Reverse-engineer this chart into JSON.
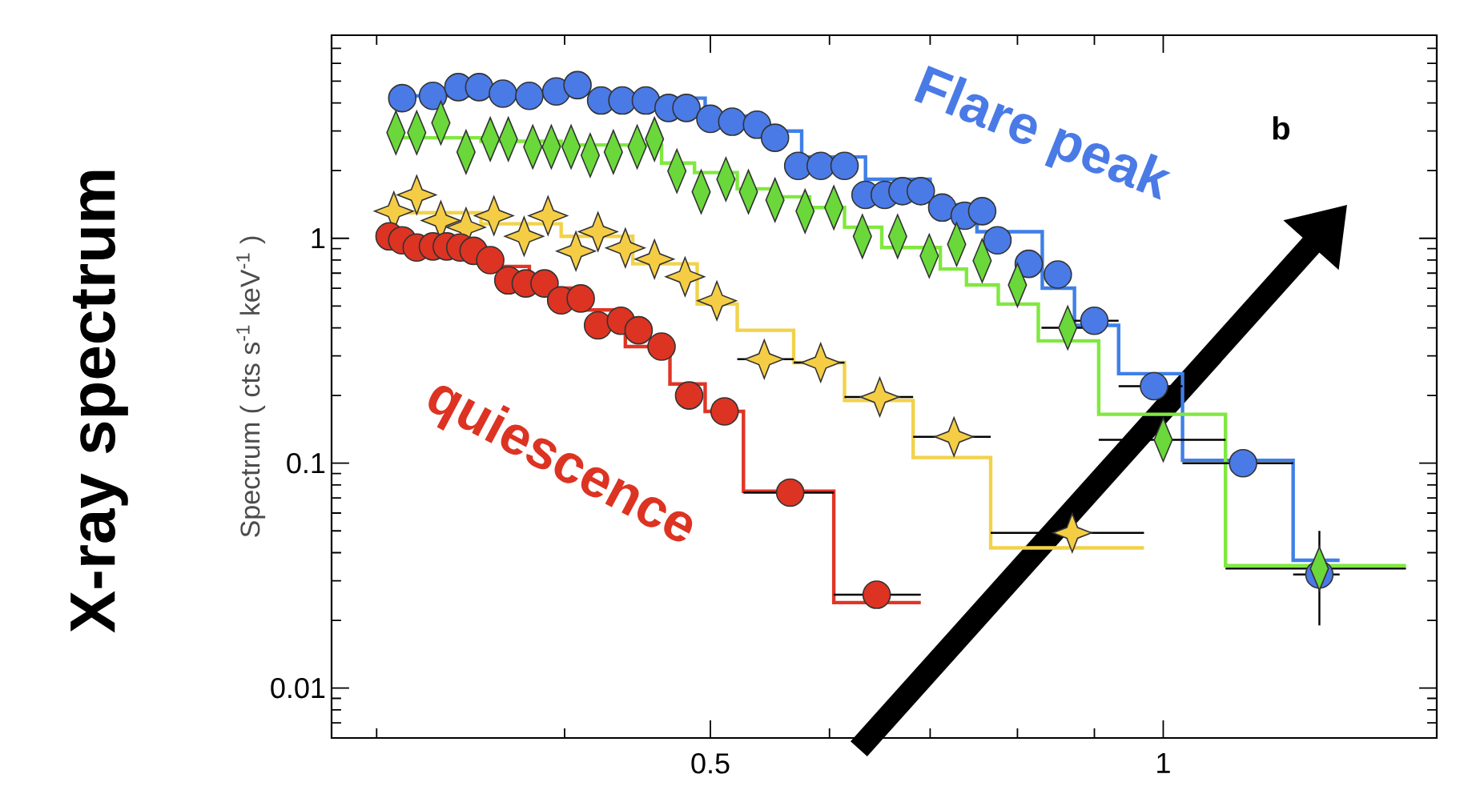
{
  "chart_data": {
    "type": "scatter",
    "title": "X-ray spectrum",
    "ylabel": "Spectrum ( cts s$^{-1}$ keV$^{-1}$ )",
    "annotations": [
      "b"
    ],
    "log": "xy",
    "xlim": [
      0.28,
      1.52
    ],
    "ylim": [
      0.006,
      8
    ],
    "xticks": [
      {
        "value": 0.3,
        "label": null
      },
      {
        "value": 0.4,
        "label": null
      },
      0.5,
      {
        "value": 0.6,
        "label": null
      },
      {
        "value": 0.7,
        "label": null
      },
      {
        "value": 0.8,
        "label": null
      },
      {
        "value": 0.9,
        "label": null
      },
      1
    ],
    "yticks": [
      {
        "value": 0.007,
        "label": null
      },
      {
        "value": 0.008,
        "label": null
      },
      {
        "value": 0.009,
        "label": null
      },
      0.01,
      {
        "value": 0.02,
        "label": null
      },
      {
        "value": 0.03,
        "label": null
      },
      {
        "value": 0.04,
        "label": null
      },
      {
        "value": 0.05,
        "label": null
      },
      {
        "value": 0.06,
        "label": null
      },
      {
        "value": 0.07,
        "label": null
      },
      {
        "value": 0.08,
        "label": null
      },
      {
        "value": 0.09,
        "label": null
      },
      0.1,
      {
        "value": 0.2,
        "label": null
      },
      {
        "value": 0.3,
        "label": null
      },
      {
        "value": 0.4,
        "label": null
      },
      {
        "value": 0.5,
        "label": null
      },
      {
        "value": 0.6,
        "label": null
      },
      {
        "value": 0.7,
        "label": null
      },
      {
        "value": 0.8,
        "label": null
      },
      {
        "value": 0.9,
        "label": null
      },
      1,
      {
        "value": 2,
        "label": null
      },
      {
        "value": 3,
        "label": null
      },
      {
        "value": 4,
        "label": null
      },
      {
        "value": 5,
        "label": null
      },
      {
        "value": 6,
        "label": null
      },
      {
        "value": 7,
        "label": null
      }
    ],
    "series": [
      {
        "type": "step",
        "color": "#3f7fe8",
        "x": [
          0.308,
          0.379,
          0.45,
          0.496,
          0.534,
          0.575,
          0.634,
          0.7,
          0.752,
          0.831,
          0.873,
          0.934,
          1.03,
          1.22,
          1.31
        ],
        "values": [
          4.3,
          4.4,
          4.2,
          3.5,
          3.0,
          2.3,
          1.83,
          1.41,
          1.07,
          0.6,
          0.41,
          0.25,
          0.103,
          0.037,
          0.037
        ]
      },
      {
        "type": "step",
        "color": "#80e840",
        "x": [
          0.308,
          0.352,
          0.398,
          0.464,
          0.488,
          0.521,
          0.552,
          0.582,
          0.614,
          0.65,
          0.711,
          0.74,
          0.777,
          0.826,
          0.906,
          1.1,
          1.45
        ],
        "values": [
          2.8,
          2.7,
          2.6,
          2.16,
          1.96,
          1.66,
          1.53,
          1.37,
          1.12,
          0.91,
          0.73,
          0.62,
          0.51,
          0.35,
          0.165,
          0.035,
          0.035
        ]
      },
      {
        "type": "step",
        "color": "#f2d24a",
        "x": [
          0.304,
          0.352,
          0.398,
          0.444,
          0.49,
          0.521,
          0.568,
          0.614,
          0.682,
          0.768,
          0.971
        ],
        "values": [
          1.3,
          1.16,
          1.02,
          0.77,
          0.51,
          0.39,
          0.28,
          0.19,
          0.106,
          0.042,
          0.042
        ]
      },
      {
        "type": "step",
        "color": "#e03525",
        "x": [
          0.304,
          0.352,
          0.379,
          0.408,
          0.439,
          0.47,
          0.496,
          0.526,
          0.604,
          0.69
        ],
        "values": [
          0.95,
          0.75,
          0.6,
          0.48,
          0.33,
          0.225,
          0.17,
          0.075,
          0.024,
          0.024
        ]
      },
      {
        "name": "Flare peak",
        "marker": "circle",
        "color": "#4a7ae6",
        "x": [
          0.312,
          0.327,
          0.34,
          0.351,
          0.364,
          0.379,
          0.395,
          0.408,
          0.423,
          0.437,
          0.453,
          0.469,
          0.482,
          0.5,
          0.517,
          0.537,
          0.552,
          0.572,
          0.592,
          0.614,
          0.634,
          0.653,
          0.671,
          0.69,
          0.713,
          0.738,
          0.758,
          0.776,
          0.814,
          0.851,
          0.9,
          0.986,
          1.13,
          1.27
        ],
        "values": [
          4.2,
          4.3,
          4.7,
          4.7,
          4.4,
          4.3,
          4.5,
          4.8,
          4.1,
          4.1,
          4.1,
          3.8,
          3.8,
          3.4,
          3.3,
          3.2,
          2.8,
          2.1,
          2.1,
          2.1,
          1.56,
          1.56,
          1.62,
          1.62,
          1.37,
          1.26,
          1.32,
          0.98,
          0.77,
          0.69,
          0.43,
          0.22,
          0.1,
          0.032
        ],
        "xerrors": [
          null,
          null,
          null,
          null,
          null,
          null,
          null,
          null,
          null,
          null,
          null,
          null,
          null,
          null,
          null,
          null,
          null,
          null,
          null,
          null,
          null,
          null,
          null,
          null,
          null,
          null,
          null,
          null,
          null,
          null,
          [
            0.87,
            0.934
          ],
          [
            0.934,
            1.03
          ],
          [
            1.03,
            1.22
          ],
          [
            1.22,
            1.31
          ]
        ]
      },
      {
        "marker": "diamond",
        "color": "#6ad83a",
        "x": [
          0.309,
          0.319,
          0.331,
          0.344,
          0.357,
          0.367,
          0.381,
          0.392,
          0.404,
          0.416,
          0.431,
          0.447,
          0.459,
          0.475,
          0.493,
          0.512,
          0.53,
          0.552,
          0.578,
          0.604,
          0.631,
          0.666,
          0.699,
          0.729,
          0.758,
          0.8,
          0.864,
          1.0,
          1.27
        ],
        "values": [
          2.95,
          2.95,
          3.26,
          2.42,
          2.76,
          2.76,
          2.55,
          2.55,
          2.55,
          2.34,
          2.42,
          2.55,
          2.76,
          1.99,
          1.61,
          1.83,
          1.61,
          1.48,
          1.32,
          1.37,
          1.02,
          1.02,
          0.835,
          0.94,
          0.795,
          0.62,
          0.4,
          0.127,
          0.034
        ],
        "xerrors": [
          null,
          null,
          null,
          null,
          null,
          null,
          null,
          null,
          null,
          null,
          null,
          null,
          null,
          null,
          null,
          null,
          null,
          null,
          null,
          null,
          null,
          null,
          null,
          null,
          null,
          null,
          [
            0.83,
            0.9
          ],
          [
            0.906,
            1.1
          ],
          [
            1.1,
            1.45
          ]
        ],
        "errors": [
          null,
          null,
          null,
          null,
          null,
          null,
          null,
          null,
          null,
          null,
          null,
          null,
          null,
          null,
          null,
          null,
          null,
          null,
          null,
          null,
          null,
          null,
          null,
          null,
          null,
          null,
          null,
          null,
          [
            0.019,
            0.05
          ]
        ]
      },
      {
        "marker": "star",
        "color": "#f5cd45",
        "x": [
          0.308,
          0.319,
          0.331,
          0.344,
          0.359,
          0.376,
          0.39,
          0.407,
          0.421,
          0.439,
          0.459,
          0.481,
          0.505,
          0.543,
          0.592,
          0.648,
          0.726,
          0.87
        ],
        "values": [
          1.32,
          1.56,
          1.2,
          1.12,
          1.26,
          1.02,
          1.26,
          0.877,
          1.07,
          0.906,
          0.808,
          0.675,
          0.528,
          0.29,
          0.28,
          0.197,
          0.131,
          0.049
        ],
        "xerrors": [
          null,
          null,
          null,
          null,
          null,
          null,
          null,
          null,
          null,
          null,
          null,
          null,
          null,
          [
            0.521,
            0.568
          ],
          [
            0.568,
            0.614
          ],
          [
            0.614,
            0.682
          ],
          [
            0.682,
            0.768
          ],
          [
            0.768,
            0.971
          ]
        ]
      },
      {
        "name": "quiescence",
        "marker": "circle",
        "color": "#dd3322",
        "x": [
          0.306,
          0.312,
          0.319,
          0.327,
          0.334,
          0.341,
          0.348,
          0.357,
          0.367,
          0.377,
          0.388,
          0.398,
          0.41,
          0.421,
          0.436,
          0.448,
          0.464,
          0.484,
          0.511,
          0.565,
          0.645
        ],
        "values": [
          1.02,
          0.98,
          0.91,
          0.92,
          0.92,
          0.91,
          0.88,
          0.8,
          0.65,
          0.63,
          0.63,
          0.53,
          0.54,
          0.41,
          0.43,
          0.39,
          0.33,
          0.2,
          0.17,
          0.074,
          0.026
        ],
        "xerrors": [
          null,
          null,
          null,
          null,
          null,
          null,
          null,
          null,
          null,
          null,
          null,
          null,
          null,
          null,
          null,
          null,
          null,
          null,
          null,
          [
            0.526,
            0.604
          ],
          [
            0.604,
            0.69
          ]
        ]
      }
    ]
  }
}
